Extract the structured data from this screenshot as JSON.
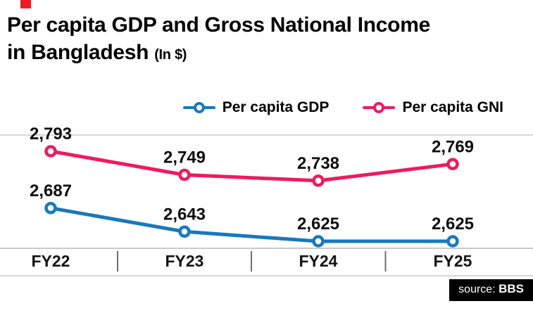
{
  "page": {
    "accent_color": "#ed1c24"
  },
  "title": {
    "main": "Per capita GDP and Gross National Income in Bangladesh",
    "unit": "(In $)"
  },
  "source": {
    "prefix": "source:",
    "name": "BBS"
  },
  "chart_data": {
    "type": "line",
    "title": "Per capita GDP and Gross National Income in Bangladesh (In $)",
    "categories": [
      "FY22",
      "FY23",
      "FY24",
      "FY25"
    ],
    "series": [
      {
        "name": "Per capita GDP",
        "color": "#1779be",
        "values": [
          2687,
          2643,
          2625,
          2625
        ],
        "labels": [
          "2,687",
          "2,643",
          "2,625",
          "2,625"
        ]
      },
      {
        "name": "Per capita GNI",
        "color": "#ed1b5e",
        "values": [
          2793,
          2749,
          2738,
          2769
        ],
        "labels": [
          "2,793",
          "2,749",
          "2,738",
          "2,769"
        ]
      }
    ],
    "ylim": [
      2600,
      2800
    ],
    "xlabel": "",
    "ylabel": "",
    "grid": "minimal-horizontal",
    "legend_position": "top",
    "marker": "open-circle"
  }
}
